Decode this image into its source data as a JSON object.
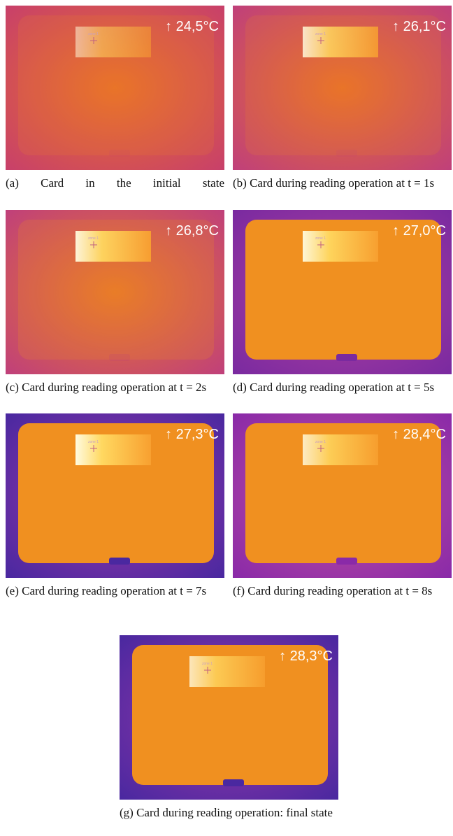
{
  "panels": [
    {
      "temperature": "↑ 24,5°C",
      "zone": "zone 1",
      "caption": "(a) Card in the initial state"
    },
    {
      "temperature": "↑ 26,1°C",
      "zone": "zone 1",
      "caption": "(b) Card during reading operation at t = 1s"
    },
    {
      "temperature": "↑ 26,8°C",
      "zone": "zone 1",
      "caption": "(c) Card during reading operation at t = 2s"
    },
    {
      "temperature": "↑ 27,0°C",
      "zone": "zone 1",
      "caption": "(d) Card during reading operation at t = 5s"
    },
    {
      "temperature": "↑ 27,3°C",
      "zone": "zone 1",
      "caption": "(e) Card during reading operation at t = 7s"
    },
    {
      "temperature": "↑ 28,4°C",
      "zone": "zone 1",
      "caption": "(f) Card during reading operation at t = 8s"
    },
    {
      "temperature": "↑ 28,3°C",
      "zone": "zone 1",
      "caption": "(g) Card during reading operation: final state"
    }
  ]
}
